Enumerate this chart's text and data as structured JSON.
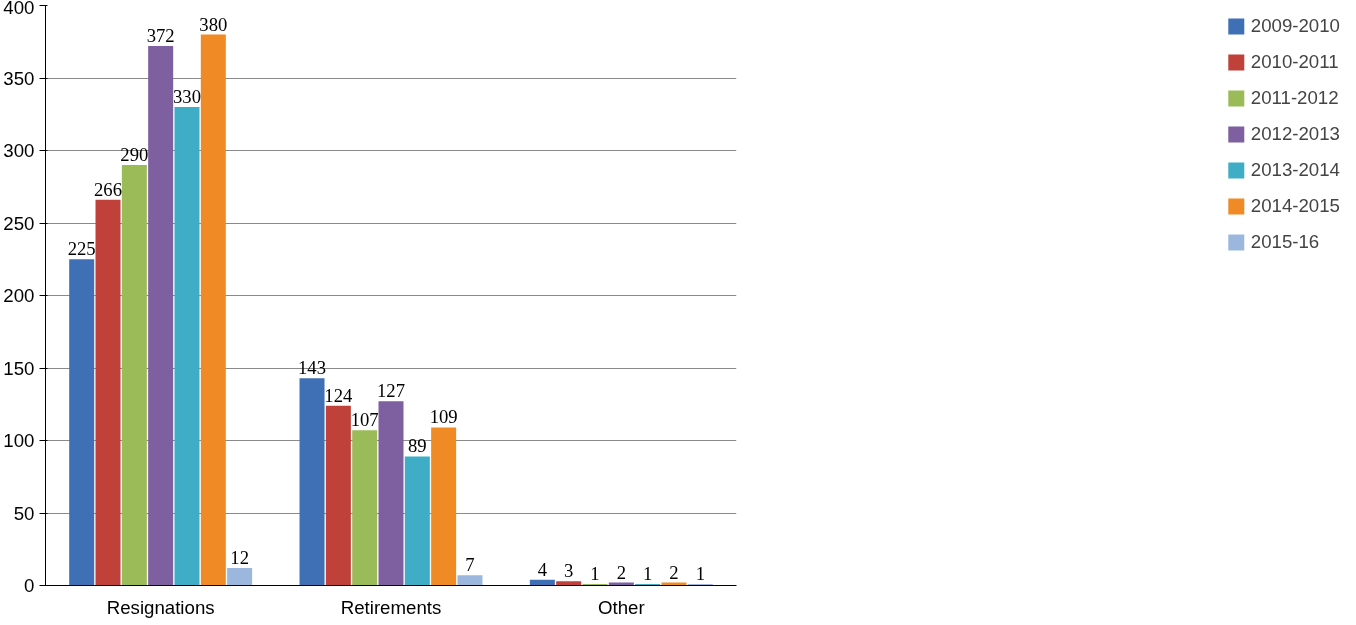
{
  "chart_data": {
    "type": "bar",
    "categories": [
      "Resignations",
      "Retirements",
      "Other"
    ],
    "series": [
      {
        "name": "2009-2010",
        "color": "#3f6fb5",
        "values": [
          225,
          143,
          4
        ]
      },
      {
        "name": "2010-2011",
        "color": "#c0403a",
        "values": [
          266,
          124,
          3
        ]
      },
      {
        "name": "2011-2012",
        "color": "#9bbb59",
        "values": [
          290,
          107,
          1
        ]
      },
      {
        "name": "2012-2013",
        "color": "#7e5fa0",
        "values": [
          372,
          127,
          2
        ]
      },
      {
        "name": "2013-2014",
        "color": "#3fadc6",
        "values": [
          330,
          89,
          1
        ]
      },
      {
        "name": "2014-2015",
        "color": "#f08a25",
        "values": [
          380,
          109,
          2
        ]
      },
      {
        "name": "2015-16",
        "color": "#9bb7dd",
        "values": [
          12,
          7,
          1
        ]
      }
    ],
    "ylim": [
      0,
      400
    ],
    "yticks": [
      0,
      50,
      100,
      150,
      200,
      250,
      300,
      350,
      400
    ],
    "grid": "y",
    "legend": "right",
    "data_labels": true
  }
}
